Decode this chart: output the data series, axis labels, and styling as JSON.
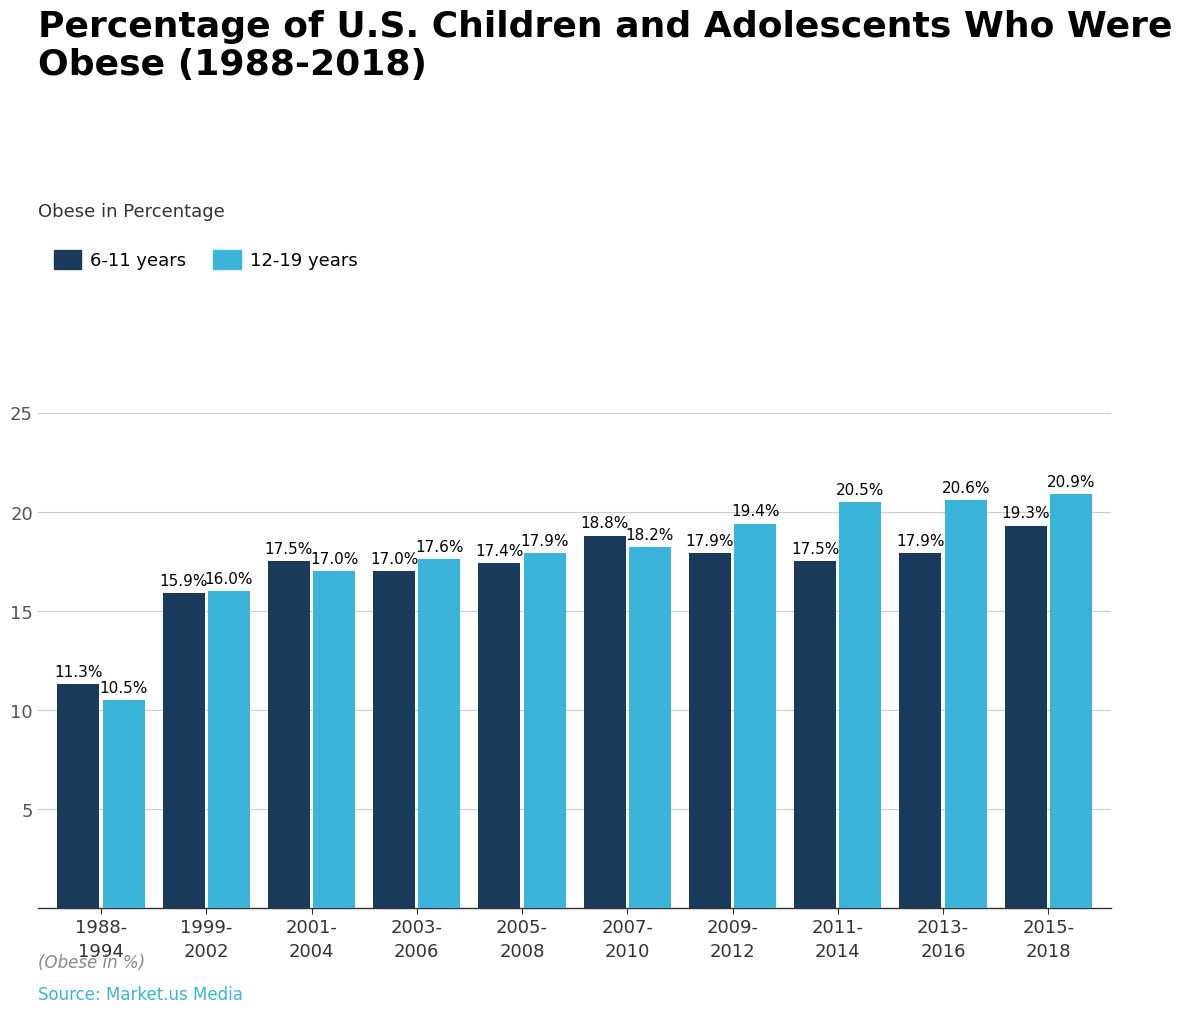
{
  "title": "Percentage of U.S. Children and Adolescents Who Were\nObese (1988-2018)",
  "ylabel": "Obese in Percentage",
  "categories": [
    "1988-\n1994",
    "1999-\n2002",
    "2001-\n2004",
    "2003-\n2006",
    "2005-\n2008",
    "2007-\n2010",
    "2009-\n2012",
    "2011-\n2014",
    "2013-\n2016",
    "2015-\n2018"
  ],
  "series1_label": "6-11 years",
  "series2_label": "12-19 years",
  "series1_values": [
    11.3,
    15.9,
    17.5,
    17.0,
    17.4,
    18.8,
    17.9,
    17.5,
    17.9,
    19.3
  ],
  "series2_values": [
    10.5,
    16.0,
    17.0,
    17.6,
    17.9,
    18.2,
    19.4,
    20.5,
    20.6,
    20.9
  ],
  "color1": "#1a3a5c",
  "color2": "#3ab4d8",
  "ylim": [
    0,
    27
  ],
  "yticks": [
    5,
    10,
    15,
    20,
    25
  ],
  "background_color": "#ffffff",
  "title_fontsize": 26,
  "ylabel_fontsize": 13,
  "tick_fontsize": 13,
  "legend_fontsize": 13,
  "bar_label_fontsize": 11,
  "source_text": "Source: Market.us Media",
  "footnote_text": "(Obese in %)",
  "grid_color": "#cccccc",
  "footnote_color": "#888888",
  "source_color": "#3ab4d8"
}
